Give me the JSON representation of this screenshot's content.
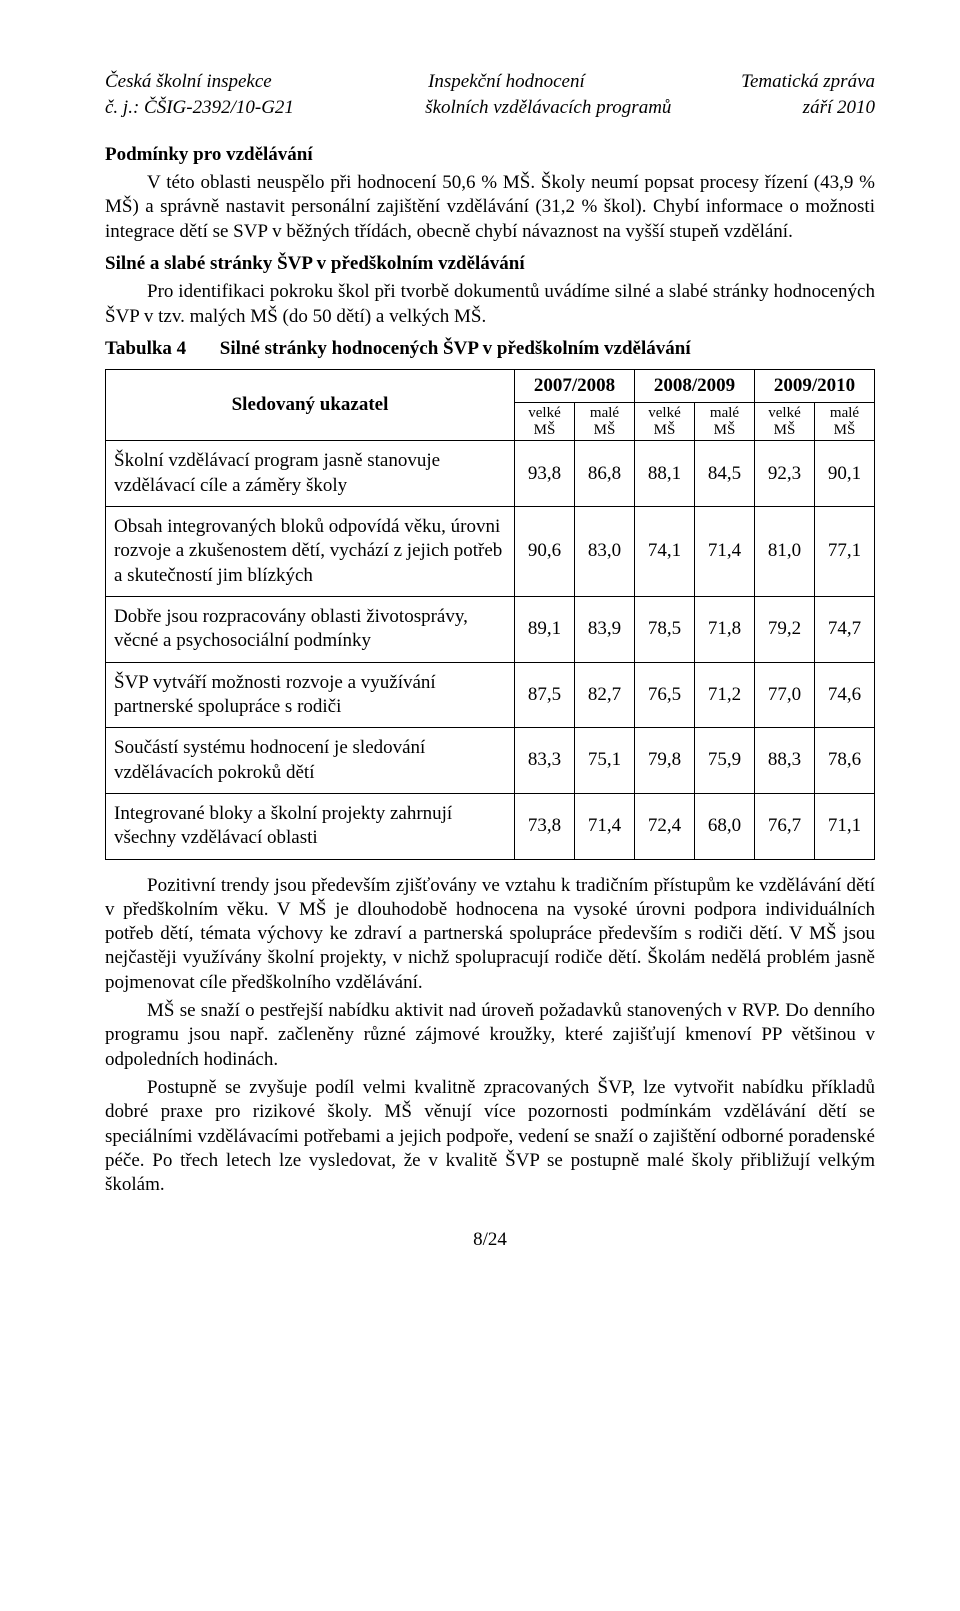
{
  "header": {
    "top_left": "Česká školní inspekce",
    "top_center": "Inspekční hodnocení",
    "top_right": "Tematická zpráva",
    "bottom_left": "č. j.: ČŠIG-2392/10-G21",
    "bottom_center": "školních vzdělávacích programů",
    "bottom_right": "září 2010"
  },
  "section_heading": "Podmínky pro vzdělávání",
  "para1": "V této oblasti neuspělo při hodnocení 50,6 % MŠ. Školy neumí popsat procesy řízení (43,9 % MŠ) a správně nastavit personální zajištění vzdělávání (31,2 % škol). Chybí informace o možnosti integrace dětí se SVP v běžných třídách, obecně chybí návaznost na vyšší stupeň vzdělání.",
  "subheading": "Silné a slabé stránky ŠVP v předškolním vzdělávání",
  "para2": "Pro identifikaci pokroku škol při tvorbě dokumentů uvádíme silné a slabé stránky hodnocených ŠVP v tzv. malých MŠ (do 50 dětí) a velkých MŠ.",
  "table": {
    "caption_num": "Tabulka 4",
    "caption_title": "Silné stránky hodnocených ŠVP v předškolním vzdělávání",
    "indicator_head": "Sledovaný ukazatel",
    "years": [
      "2007/2008",
      "2008/2009",
      "2009/2010"
    ],
    "sub_velke": "velké\nMŠ",
    "sub_male": "malé\nMŠ",
    "rows": [
      {
        "label": "Školní vzdělávací program jasně stanovuje vzdělávací cíle a záměry školy",
        "vals": [
          "93,8",
          "86,8",
          "88,1",
          "84,5",
          "92,3",
          "90,1"
        ]
      },
      {
        "label": "Obsah integrovaných bloků odpovídá věku, úrovni rozvoje a zkušenostem dětí, vychází z jejich potřeb a skutečností jim blízkých",
        "vals": [
          "90,6",
          "83,0",
          "74,1",
          "71,4",
          "81,0",
          "77,1"
        ]
      },
      {
        "label": "Dobře jsou rozpracovány oblasti životosprávy, věcné a psychosociální podmínky",
        "vals": [
          "89,1",
          "83,9",
          "78,5",
          "71,8",
          "79,2",
          "74,7"
        ]
      },
      {
        "label": "ŠVP vytváří možnosti rozvoje a využívání partnerské spolupráce s rodiči",
        "vals": [
          "87,5",
          "82,7",
          "76,5",
          "71,2",
          "77,0",
          "74,6"
        ]
      },
      {
        "label": "Součástí systému hodnocení je sledování vzdělávacích pokroků dětí",
        "vals": [
          "83,3",
          "75,1",
          "79,8",
          "75,9",
          "88,3",
          "78,6"
        ]
      },
      {
        "label": "Integrované bloky a školní projekty zahrnují všechny vzdělávací oblasti",
        "vals": [
          "73,8",
          "71,4",
          "72,4",
          "68,0",
          "76,7",
          "71,1"
        ]
      }
    ]
  },
  "para3": "Pozitivní trendy jsou především zjišťovány ve vztahu k tradičním přístupům ke vzdělávání dětí v předškolním věku. V MŠ je dlouhodobě hodnocena na vysoké úrovni podpora individuálních potřeb dětí, témata výchovy ke zdraví a partnerská spolupráce především s rodiči dětí. V MŠ jsou nejčastěji využívány školní projekty, v nichž spolupracují rodiče dětí. Školám nedělá problém jasně pojmenovat cíle předškolního vzdělávání.",
  "para4": "MŠ se snaží o pestřejší nabídku aktivit nad úroveň požadavků stanovených v RVP. Do denního programu jsou např. začleněny různé zájmové kroužky, které zajišťují kmenoví PP většinou v odpoledních hodinách.",
  "para5": "Postupně se zvyšuje podíl velmi kvalitně zpracovaných ŠVP, lze vytvořit nabídku příkladů dobré praxe pro rizikové školy. MŠ věnují více pozornosti podmínkám vzdělávání dětí se speciálními vzdělávacími potřebami a jejich podpoře, vedení se snaží o zajištění odborné poradenské péče. Po třech letech lze vysledovat, že v kvalitě ŠVP se postupně malé školy přibližují velkým školám.",
  "footer": "8/24"
}
